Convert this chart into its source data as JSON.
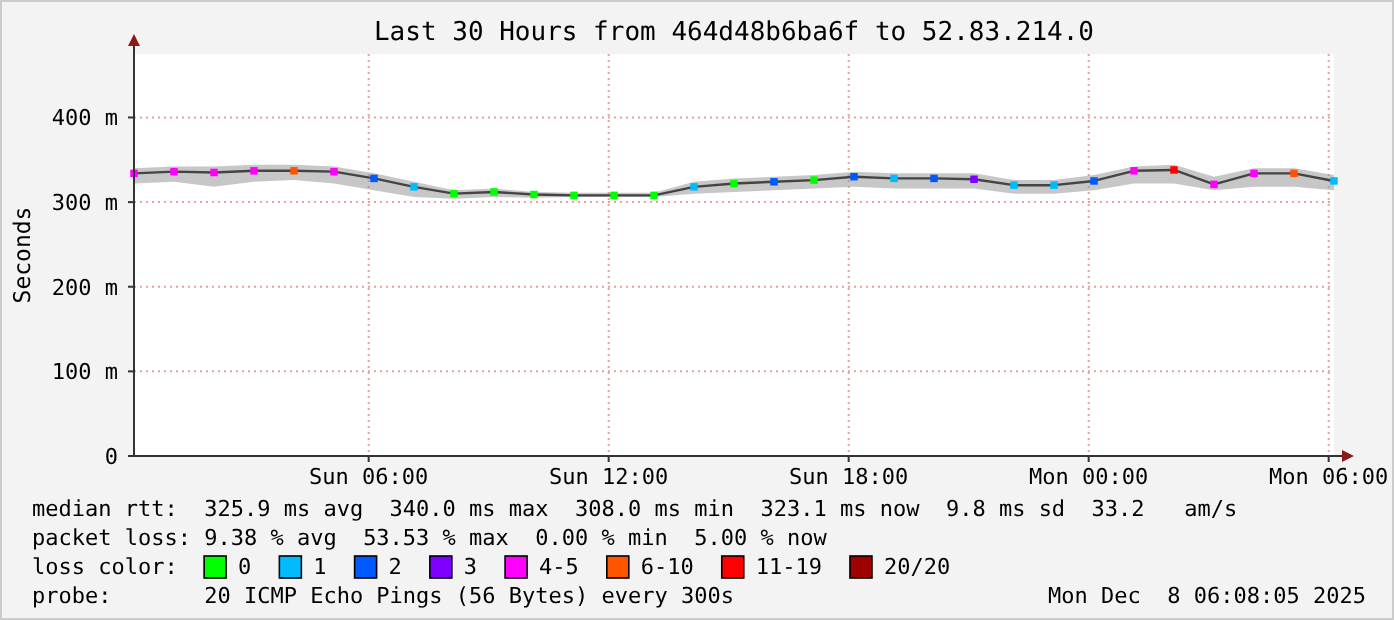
{
  "chart_data": {
    "type": "line",
    "title": "Last 30 Hours from 464d48b6ba6f to 52.83.214.0",
    "ylabel": "Seconds",
    "xlim": [
      "2025-12-07T00:08",
      "2025-12-08T06:08"
    ],
    "xticks": [
      {
        "value": "2025-12-07T06:00",
        "label": "Sun 06:00"
      },
      {
        "value": "2025-12-07T12:00",
        "label": "Sun 12:00"
      },
      {
        "value": "2025-12-07T18:00",
        "label": "Sun 18:00"
      },
      {
        "value": "2025-12-08T00:00",
        "label": "Mon 00:00"
      },
      {
        "value": "2025-12-08T06:00",
        "label": "Mon 06:00"
      }
    ],
    "ylim": [
      0,
      475
    ],
    "yticks": [
      0,
      {
        "value": 100,
        "label": "100 m"
      },
      {
        "value": 200,
        "label": "200 m"
      },
      {
        "value": 300,
        "label": "300 m"
      },
      {
        "value": 400,
        "label": "400 m"
      }
    ],
    "grid": true,
    "legend": "bottom",
    "legend_title": "loss color:",
    "x": [
      "2025-12-07T00:08",
      "2025-12-07T01:08",
      "2025-12-07T02:08",
      "2025-12-07T03:08",
      "2025-12-07T04:08",
      "2025-12-07T05:08",
      "2025-12-07T06:08",
      "2025-12-07T07:08",
      "2025-12-07T08:08",
      "2025-12-07T09:08",
      "2025-12-07T10:08",
      "2025-12-07T11:08",
      "2025-12-07T12:08",
      "2025-12-07T13:08",
      "2025-12-07T14:08",
      "2025-12-07T15:08",
      "2025-12-07T16:08",
      "2025-12-07T17:08",
      "2025-12-07T18:08",
      "2025-12-07T19:08",
      "2025-12-07T20:08",
      "2025-12-07T21:08",
      "2025-12-07T22:08",
      "2025-12-07T23:08",
      "2025-12-08T00:08",
      "2025-12-08T01:08",
      "2025-12-08T02:08",
      "2025-12-08T03:08",
      "2025-12-08T04:08",
      "2025-12-08T05:08",
      "2025-12-08T06:08"
    ],
    "series": [
      {
        "color": "#444444",
        "values": [
          334,
          336,
          335,
          337,
          337,
          336,
          328,
          318,
          310,
          312,
          309,
          308,
          308,
          308,
          318,
          322,
          324,
          326,
          330,
          328,
          328,
          327,
          320,
          320,
          325,
          337,
          338,
          321,
          334,
          334,
          325
        ],
        "lower": [
          322,
          324,
          318,
          324,
          326,
          322,
          314,
          306,
          304,
          306,
          305,
          306,
          306,
          306,
          310,
          312,
          314,
          316,
          318,
          316,
          316,
          316,
          310,
          310,
          314,
          322,
          322,
          314,
          318,
          318,
          314
        ],
        "upper": [
          340,
          342,
          342,
          344,
          344,
          342,
          334,
          324,
          314,
          316,
          312,
          311,
          311,
          311,
          324,
          328,
          330,
          332,
          336,
          334,
          334,
          334,
          326,
          326,
          332,
          342,
          344,
          330,
          340,
          340,
          332
        ]
      },
      {
        "type": "scatter",
        "name": "0",
        "marker": "square",
        "color": "#00ff00",
        "values": [
          null,
          null,
          null,
          null,
          null,
          null,
          null,
          null,
          310,
          312,
          309,
          308,
          308,
          308,
          null,
          322,
          null,
          326,
          null,
          null,
          null,
          null,
          null,
          null,
          null,
          null,
          null,
          null,
          null,
          null,
          null
        ]
      },
      {
        "type": "scatter",
        "name": "1",
        "marker": "square",
        "color": "#00bbff",
        "values": [
          null,
          null,
          null,
          null,
          null,
          null,
          null,
          318,
          null,
          null,
          null,
          null,
          null,
          null,
          318,
          null,
          null,
          null,
          null,
          328,
          null,
          null,
          320,
          320,
          null,
          null,
          null,
          null,
          null,
          null,
          325
        ]
      },
      {
        "type": "scatter",
        "name": "2",
        "marker": "square",
        "color": "#0059ff",
        "values": [
          null,
          null,
          null,
          null,
          null,
          null,
          328,
          null,
          null,
          null,
          null,
          null,
          null,
          null,
          null,
          null,
          324,
          null,
          330,
          null,
          328,
          null,
          null,
          null,
          325,
          null,
          null,
          null,
          null,
          null,
          null
        ]
      },
      {
        "type": "scatter",
        "name": "3",
        "marker": "square",
        "color": "#7e00ff",
        "values": [
          null,
          null,
          null,
          null,
          null,
          null,
          null,
          null,
          null,
          null,
          null,
          null,
          null,
          null,
          null,
          null,
          null,
          null,
          null,
          null,
          null,
          327,
          null,
          null,
          null,
          null,
          null,
          null,
          null,
          null,
          null
        ]
      },
      {
        "type": "scatter",
        "name": "4-5",
        "marker": "square",
        "color": "#ff00ff",
        "values": [
          334,
          336,
          335,
          337,
          null,
          336,
          null,
          null,
          null,
          null,
          null,
          null,
          null,
          null,
          null,
          null,
          null,
          null,
          null,
          null,
          null,
          null,
          null,
          null,
          null,
          337,
          null,
          321,
          334,
          null,
          null
        ]
      },
      {
        "type": "scatter",
        "name": "6-10",
        "marker": "square",
        "color": "#ff5500",
        "values": [
          null,
          null,
          null,
          null,
          337,
          null,
          null,
          null,
          null,
          null,
          null,
          null,
          null,
          null,
          null,
          null,
          null,
          null,
          null,
          null,
          null,
          null,
          null,
          null,
          null,
          null,
          null,
          null,
          null,
          334,
          null
        ]
      },
      {
        "type": "scatter",
        "name": "11-19",
        "marker": "square",
        "color": "#ff0000",
        "values": [
          null,
          null,
          null,
          null,
          null,
          null,
          null,
          null,
          null,
          null,
          null,
          null,
          null,
          null,
          null,
          null,
          null,
          null,
          null,
          null,
          null,
          null,
          null,
          null,
          null,
          null,
          338,
          null,
          null,
          null,
          null
        ]
      },
      {
        "type": "scatter",
        "name": "20/20",
        "marker": "square",
        "color": "#a10000",
        "values": [
          null,
          null,
          null,
          null,
          null,
          null,
          null,
          null,
          null,
          null,
          null,
          null,
          null,
          null,
          null,
          null,
          null,
          null,
          null,
          null,
          null,
          null,
          null,
          null,
          null,
          null,
          null,
          null,
          null,
          null,
          null
        ]
      }
    ],
    "annotations": [
      "median rtt:  325.9 ms avg  340.0 ms max  308.0 ms min  323.1 ms now  9.8 ms sd  33.2   am/s",
      "packet loss: 9.38 % avg  53.53 % max  0.00 % min  5.00 % now",
      "probe:       20 ICMP Echo Pings (56 Bytes) every 300s",
      "Mon Dec  8 06:08:05 2025"
    ]
  }
}
